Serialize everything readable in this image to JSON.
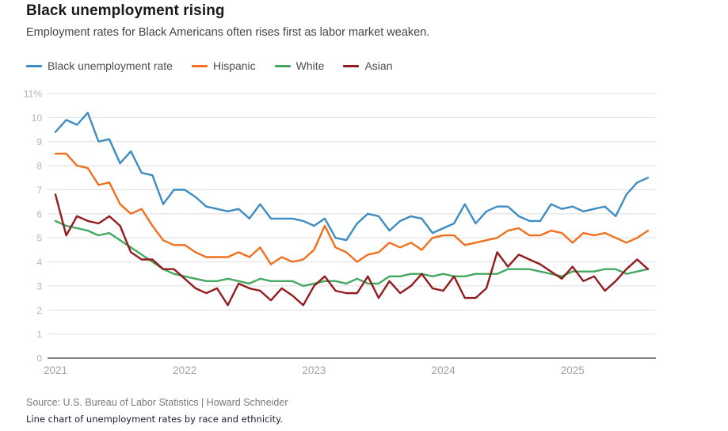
{
  "chart_data": {
    "type": "line",
    "title": "Black unemployment rising",
    "subtitle": "Employment rates for Black Americans often rises first as labor market weaken.",
    "x_period": "monthly",
    "x_start": "Jan 2021",
    "x_end": "Aug 2025",
    "ylim": [
      0,
      11
    ],
    "grid": true,
    "legend_position": "top-left",
    "yticks": [
      {
        "value": 0,
        "label": "0"
      },
      {
        "value": 1,
        "label": "1"
      },
      {
        "value": 2,
        "label": "2"
      },
      {
        "value": 3,
        "label": "3"
      },
      {
        "value": 4,
        "label": "4"
      },
      {
        "value": 5,
        "label": "5"
      },
      {
        "value": 6,
        "label": "6"
      },
      {
        "value": 7,
        "label": "7"
      },
      {
        "value": 8,
        "label": "8"
      },
      {
        "value": 9,
        "label": "9"
      },
      {
        "value": 10,
        "label": "10"
      },
      {
        "value": 11,
        "label": "11%"
      }
    ],
    "x_ticks": [
      {
        "label": "2021",
        "index": 0
      },
      {
        "label": "2022",
        "index": 12
      },
      {
        "label": "2023",
        "index": 24
      },
      {
        "label": "2024",
        "index": 36
      },
      {
        "label": "2025",
        "index": 48
      }
    ],
    "series": [
      {
        "name": "Black unemployment rate",
        "color": "#3d8dc3",
        "values": [
          9.4,
          9.9,
          9.7,
          10.2,
          9.0,
          9.1,
          8.1,
          8.6,
          7.7,
          7.6,
          6.4,
          7.0,
          7.0,
          6.7,
          6.3,
          6.2,
          6.1,
          6.2,
          5.8,
          6.4,
          5.8,
          5.8,
          5.8,
          5.7,
          5.5,
          5.8,
          5.0,
          4.9,
          5.6,
          6.0,
          5.9,
          5.3,
          5.7,
          5.9,
          5.8,
          5.2,
          5.4,
          5.6,
          6.4,
          5.6,
          6.1,
          6.3,
          6.3,
          5.9,
          5.7,
          5.7,
          6.4,
          6.2,
          6.3,
          6.1,
          6.2,
          6.3,
          5.9,
          6.8,
          7.3,
          7.5
        ]
      },
      {
        "name": "Hispanic",
        "color": "#f1701e",
        "values": [
          8.5,
          8.5,
          8.0,
          7.9,
          7.2,
          7.3,
          6.4,
          6.0,
          6.2,
          5.5,
          4.9,
          4.7,
          4.7,
          4.4,
          4.2,
          4.2,
          4.2,
          4.4,
          4.2,
          4.6,
          3.9,
          4.2,
          4.0,
          4.1,
          4.5,
          5.5,
          4.6,
          4.4,
          4.0,
          4.3,
          4.4,
          4.8,
          4.6,
          4.8,
          4.5,
          5.0,
          5.1,
          5.1,
          4.7,
          4.8,
          4.9,
          5.0,
          5.3,
          5.4,
          5.1,
          5.1,
          5.3,
          5.2,
          4.8,
          5.2,
          5.1,
          5.2,
          5.0,
          4.8,
          5.0,
          5.3
        ]
      },
      {
        "name": "White",
        "color": "#45a861",
        "values": [
          5.7,
          5.5,
          5.4,
          5.3,
          5.1,
          5.2,
          4.9,
          4.6,
          4.3,
          4.0,
          3.7,
          3.5,
          3.4,
          3.3,
          3.2,
          3.2,
          3.3,
          3.2,
          3.1,
          3.3,
          3.2,
          3.2,
          3.2,
          3.0,
          3.1,
          3.2,
          3.2,
          3.1,
          3.3,
          3.1,
          3.1,
          3.4,
          3.4,
          3.5,
          3.5,
          3.4,
          3.5,
          3.4,
          3.4,
          3.5,
          3.5,
          3.5,
          3.7,
          3.7,
          3.7,
          3.6,
          3.5,
          3.4,
          3.6,
          3.6,
          3.6,
          3.7,
          3.7,
          3.5,
          3.6,
          3.7
        ]
      },
      {
        "name": "Asian",
        "color": "#941b1e",
        "values": [
          6.8,
          5.1,
          5.9,
          5.7,
          5.6,
          5.9,
          5.5,
          4.4,
          4.1,
          4.1,
          3.7,
          3.7,
          3.3,
          2.9,
          2.7,
          2.9,
          2.2,
          3.1,
          2.9,
          2.8,
          2.4,
          2.9,
          2.6,
          2.2,
          3.0,
          3.4,
          2.8,
          2.7,
          2.7,
          3.4,
          2.5,
          3.2,
          2.7,
          3.0,
          3.5,
          2.9,
          2.8,
          3.4,
          2.5,
          2.5,
          2.9,
          4.4,
          3.8,
          4.3,
          4.1,
          3.9,
          3.6,
          3.3,
          3.8,
          3.2,
          3.4,
          2.8,
          3.2,
          3.7,
          4.1,
          3.7
        ]
      }
    ]
  },
  "footer": {
    "source": "Source: U.S. Bureau of Labor Statistics | Howard Schneider",
    "caption": "Line chart of unemployment rates by race and ethnicity."
  }
}
